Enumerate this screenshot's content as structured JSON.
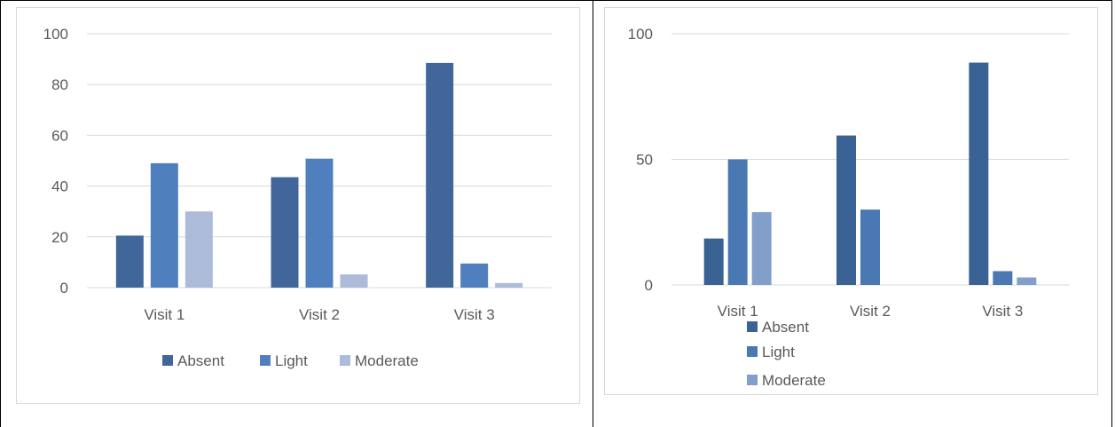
{
  "chart_data": [
    {
      "type": "bar",
      "categories": [
        "Visit 1",
        "Visit 2",
        "Visit 3"
      ],
      "yticks": [
        0,
        20,
        40,
        60,
        80,
        100
      ],
      "ylim": [
        0,
        100
      ],
      "grid": true,
      "legend_position": "bottom",
      "series": [
        {
          "name": "Absent",
          "color": "#41679a",
          "values": [
            20.5,
            43.5,
            88.5
          ]
        },
        {
          "name": "Light",
          "color": "#4f80bd",
          "values": [
            49,
            50.8,
            9.5
          ]
        },
        {
          "name": "Moderate",
          "color": "#abbbd8",
          "values": [
            30,
            5.2,
            1.8
          ]
        }
      ]
    },
    {
      "type": "bar",
      "categories": [
        "Visit 1",
        "Visit 2",
        "Visit 3"
      ],
      "yticks": [
        0,
        50,
        100
      ],
      "ylim": [
        0,
        100
      ],
      "grid": true,
      "legend_position": "bottom-left",
      "series": [
        {
          "name": "Absent",
          "color": "#3b6295",
          "values": [
            18.5,
            59.5,
            88.5
          ]
        },
        {
          "name": "Light",
          "color": "#4a78b3",
          "values": [
            50,
            30,
            5.5
          ]
        },
        {
          "name": "Moderate",
          "color": "#829fcb",
          "values": [
            29,
            0,
            3
          ]
        }
      ]
    }
  ]
}
